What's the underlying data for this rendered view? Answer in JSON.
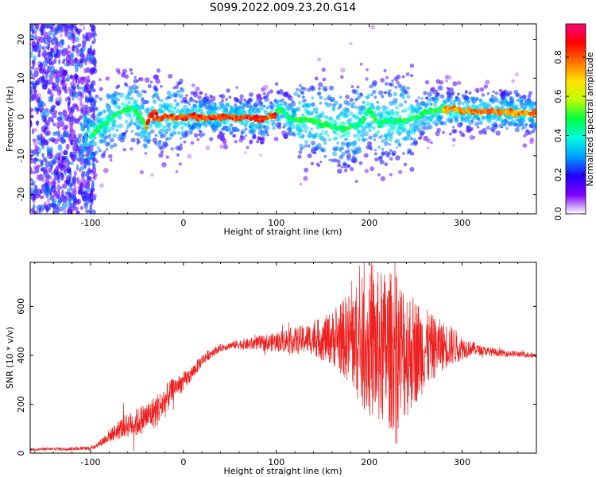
{
  "title": "S099.2022.009.23.20.G14",
  "chart_data": [
    {
      "type": "heatmap",
      "xlabel": "Height of straight line (km)",
      "ylabel": "Frequency (Hz)",
      "xlim": [
        -165,
        380
      ],
      "ylim": [
        -25,
        24
      ],
      "xticks": [
        -100,
        0,
        100,
        200,
        300
      ],
      "yticks": [
        -20,
        -10,
        0,
        10,
        20
      ],
      "colorbar": {
        "label": "Normalized spectral amplitude",
        "range": [
          0,
          0.97
        ],
        "ticks": [
          0.0,
          0.2,
          0.4,
          0.6,
          0.8
        ],
        "tick_labels": [
          "0.0",
          "0.2",
          "0.4",
          "0.6",
          "0.8"
        ],
        "colormap": [
          "#ffffff",
          "#7f00ff",
          "#2200ff",
          "#00a0ff",
          "#00ffe0",
          "#00ff40",
          "#c0ff00",
          "#ffe000",
          "#ff7000",
          "#ff0000",
          "#ff0080"
        ]
      },
      "ridge": {
        "x": [
          -100,
          -90,
          -80,
          -70,
          -60,
          -55,
          -50,
          -45,
          -40,
          -35,
          -30,
          -25,
          -20,
          -10,
          0,
          20,
          40,
          60,
          80,
          95,
          100,
          105,
          110,
          120,
          130,
          150,
          170,
          190,
          200,
          205,
          210,
          220,
          240,
          250,
          260,
          280,
          300,
          330,
          360,
          380
        ],
        "y": [
          -5,
          -3,
          -1,
          1,
          2,
          2.5,
          1.5,
          -1,
          -2.5,
          0.5,
          1,
          -1,
          0.5,
          0,
          0,
          0,
          0,
          0,
          -0.5,
          0,
          1,
          2,
          0.5,
          -1,
          -0.5,
          -2,
          -3,
          -2,
          2,
          0,
          -2,
          -1,
          -1,
          0,
          1,
          2,
          1.5,
          1.5,
          1,
          1
        ]
      }
    },
    {
      "type": "line",
      "xlabel": "Height of straight line (km)",
      "ylabel": "SNR (10 * v/v)",
      "xlim": [
        -165,
        380
      ],
      "ylim": [
        0,
        780
      ],
      "xticks": [
        -100,
        0,
        100,
        200,
        300
      ],
      "yticks": [
        0,
        200,
        400,
        600
      ],
      "color": "#ee2020",
      "envelope": {
        "x": [
          -165,
          -100,
          -90,
          -80,
          -70,
          -60,
          -50,
          -40,
          -30,
          -20,
          -10,
          0,
          10,
          20,
          30,
          40,
          50,
          60,
          70,
          80,
          90,
          100,
          110,
          120,
          130,
          140,
          150,
          160,
          170,
          180,
          190,
          200,
          210,
          220,
          230,
          240,
          250,
          260,
          270,
          280,
          290,
          300,
          310,
          320,
          340,
          360,
          380
        ],
        "mean": [
          15,
          20,
          40,
          70,
          95,
          115,
          125,
          150,
          170,
          210,
          270,
          290,
          330,
          380,
          410,
          430,
          440,
          445,
          445,
          450,
          450,
          455,
          460,
          460,
          465,
          470,
          465,
          470,
          470,
          470,
          450,
          440,
          430,
          420,
          415,
          420,
          420,
          425,
          430,
          440,
          440,
          430,
          430,
          420,
          410,
          405,
          400
        ],
        "amp": [
          5,
          8,
          15,
          25,
          40,
          50,
          60,
          60,
          70,
          70,
          40,
          40,
          30,
          25,
          20,
          15,
          15,
          20,
          25,
          30,
          35,
          40,
          50,
          55,
          60,
          70,
          90,
          110,
          150,
          200,
          260,
          300,
          320,
          330,
          320,
          280,
          220,
          170,
          130,
          100,
          80,
          50,
          30,
          20,
          15,
          12,
          10
        ]
      }
    }
  ]
}
